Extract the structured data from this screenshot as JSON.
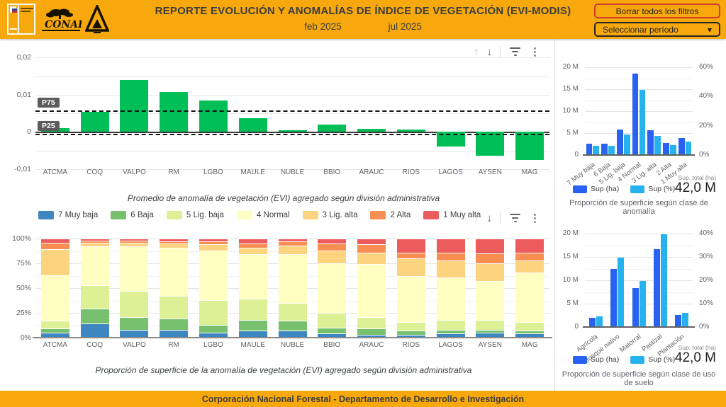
{
  "header": {
    "title": "REPORTE EVOLUCIÓN Y ANOMALÍAS DE ÍNDICE DE VEGETACIÓN (EVI-MODIS)",
    "date_start": "feb 2025",
    "date_end": "jul 2025",
    "clear_filters_label": "Borrar todos los filtros",
    "period_selector_label": "Seleccionar período",
    "conaf_logo_text": "CONAF"
  },
  "icons": {
    "arrow_up": "↑",
    "arrow_down": "↓",
    "kebab": "⋮",
    "caret_down": "▾"
  },
  "colors": {
    "accent_amber": "#F7A80D",
    "positive_green": "#00bf56",
    "sup_ha_blue": "#2962f0",
    "sup_pct_blue": "#25b2ef",
    "clear_button_border": "#cf3a2b"
  },
  "main": {
    "anomaly_caption": "Promedio de anomalía de vegetación (EVI) agregado según división administrativa",
    "stack_caption": "Proporción de superficie de la anomalía de vegetación (EVI) agregado según división administrativa"
  },
  "side": {
    "anomaly_class": {
      "caption": "Proporción de superficie según clase de anomalía",
      "total_label": "Sup. total (ha)",
      "total_value": "42,0 M"
    },
    "landuse": {
      "caption": "Proporción de superficie según clase de uso de suelo",
      "total_label": "Sup. total (ha)",
      "total_value": "42,0 M"
    }
  },
  "footer": {
    "text": "Corporación Nacional Forestal - Departamento de Desarrollo e Investigación"
  },
  "chart_data": [
    {
      "id": "anomaly_avg",
      "type": "bar",
      "title": "Promedio de anomalía de vegetación (EVI) agregado según división administrativa",
      "categories": [
        "ATCMA",
        "COQ",
        "VALPO",
        "RM",
        "LGBO",
        "MAULE",
        "NUBLE",
        "BBIO",
        "ARAUC",
        "RIOS",
        "LAGOS",
        "AYSEN",
        "MAG"
      ],
      "values": [
        0.001,
        0.0053,
        0.014,
        0.0107,
        0.0085,
        0.0037,
        0.0004,
        0.002,
        0.0008,
        0.0006,
        -0.004,
        -0.0064,
        -0.0076
      ],
      "ylim": [
        -0.011,
        0.021
      ],
      "yticks": [
        {
          "v": 0.02,
          "label": "0,02"
        },
        {
          "v": 0.01,
          "label": "0,01"
        },
        {
          "v": 0,
          "label": "0"
        },
        {
          "v": -0.01,
          "label": "-0,01"
        }
      ],
      "gridlines": [
        0.02,
        0.015,
        0.01,
        0.005,
        -0.005,
        -0.01
      ],
      "reference_lines": [
        {
          "label": "P75",
          "value": 0.0055
        },
        {
          "label": "P25",
          "value": -0.0007
        }
      ],
      "bar_color": "#00bf56",
      "grid": true,
      "legend_position": "none"
    },
    {
      "id": "anomaly_stack",
      "type": "bar",
      "subtype": "stacked-100pct",
      "title": "Proporción de superficie de la anomalía de vegetación (EVI) agregado según división administrativa",
      "categories": [
        "ATCMA",
        "COQ",
        "VALPO",
        "RM",
        "LGBO",
        "MAULE",
        "NUBLE",
        "BBIO",
        "ARAUC",
        "RIOS",
        "LAGOS",
        "AYSEN",
        "MAG"
      ],
      "yticks": [
        {
          "v": 0,
          "label": "0%"
        },
        {
          "v": 25,
          "label": "25%"
        },
        {
          "v": 50,
          "label": "50%"
        },
        {
          "v": 75,
          "label": "75%"
        },
        {
          "v": 100,
          "label": "100%"
        }
      ],
      "ylim": [
        0,
        100
      ],
      "legend_position": "top",
      "series": [
        {
          "name": "7 Muy baja",
          "color": "#3d86c0",
          "values": [
            5,
            14,
            8,
            8,
            5,
            7,
            7,
            4,
            3,
            3,
            4,
            5,
            4
          ]
        },
        {
          "name": "6 Baja",
          "color": "#77c06e",
          "values": [
            4,
            15,
            13,
            11,
            8,
            11,
            10,
            6,
            6,
            4,
            4,
            3,
            3
          ]
        },
        {
          "name": "5 Lig. baja",
          "color": "#ddf096",
          "values": [
            8,
            24,
            26,
            23,
            25,
            21,
            18,
            15,
            12,
            9,
            10,
            10,
            9
          ]
        },
        {
          "name": "4 Normal",
          "color": "#ffffc2",
          "values": [
            46,
            39,
            45,
            49,
            50,
            45,
            49,
            50,
            53,
            46,
            43,
            39,
            50
          ]
        },
        {
          "name": "3 Lig. alta",
          "color": "#fcd37e",
          "values": [
            26,
            4,
            4,
            4,
            6,
            7,
            9,
            13,
            12,
            18,
            17,
            18,
            12
          ]
        },
        {
          "name": "2 Alta",
          "color": "#f98e52",
          "values": [
            7,
            2,
            2,
            2.5,
            3,
            4,
            4,
            7,
            8,
            6,
            8,
            10,
            8
          ]
        },
        {
          "name": "1 Muy alta",
          "color": "#ec5c5c",
          "values": [
            4,
            2,
            2,
            2.5,
            3,
            5,
            3,
            5,
            6,
            14,
            14,
            15,
            14
          ]
        }
      ]
    },
    {
      "id": "class_area",
      "type": "bar",
      "subtype": "grouped-dual-axis",
      "title": "Proporción de superficie según clase de anomalía",
      "categories": [
        "7 Muy baja",
        "6 Baja",
        "5 Lig. baja",
        "4 Normal",
        "3 Lig. alta",
        "2 Alta",
        "1 Muy alta"
      ],
      "series": [
        {
          "name": "Sup (ha)",
          "color": "#2962f0",
          "unit": "M ha",
          "values": [
            2.6,
            2.6,
            5.8,
            18.6,
            5.6,
            2.8,
            3.9
          ]
        },
        {
          "name": "Sup (%)",
          "color": "#25b2ef",
          "unit": "%",
          "values": [
            6.2,
            6.2,
            13.8,
            44.3,
            13.3,
            6.7,
            9.3
          ]
        }
      ],
      "left_axis": {
        "max": 20,
        "ticks": [
          {
            "v": 20,
            "label": "20 M"
          },
          {
            "v": 15,
            "label": "15 M"
          },
          {
            "v": 10,
            "label": "10 M"
          },
          {
            "v": 5,
            "label": "5 M"
          },
          {
            "v": 0,
            "label": "0"
          }
        ]
      },
      "right_axis": {
        "max": 60,
        "ticks": [
          {
            "v": 60,
            "label": "60%"
          },
          {
            "v": 40,
            "label": "40%"
          },
          {
            "v": 20,
            "label": "20%"
          },
          {
            "v": 0,
            "label": "0%"
          }
        ]
      },
      "total_label": "Sup. total (ha)",
      "total_value": "42,0 M",
      "legend_position": "bottom"
    },
    {
      "id": "landuse_area",
      "type": "bar",
      "subtype": "grouped-dual-axis",
      "title": "Proporción de superficie según clase de uso de suelo",
      "categories": [
        "Agrícola",
        "Bosque nativo",
        "Matorral",
        "Pastizal",
        "Plantación"
      ],
      "series": [
        {
          "name": "Sup (ha)",
          "color": "#2962f0",
          "unit": "M ha",
          "values": [
            1.9,
            12.5,
            8.3,
            16.7,
            2.6
          ]
        },
        {
          "name": "Sup (%)",
          "color": "#25b2ef",
          "unit": "%",
          "values": [
            4.5,
            29.8,
            19.8,
            39.8,
            6.2
          ]
        }
      ],
      "left_axis": {
        "max": 20,
        "ticks": [
          {
            "v": 20,
            "label": "20 M"
          },
          {
            "v": 15,
            "label": "15 M"
          },
          {
            "v": 10,
            "label": "10 M"
          },
          {
            "v": 5,
            "label": "5 M"
          },
          {
            "v": 0,
            "label": "0"
          }
        ]
      },
      "right_axis": {
        "max": 40,
        "ticks": [
          {
            "v": 40,
            "label": "40%"
          },
          {
            "v": 30,
            "label": "30%"
          },
          {
            "v": 20,
            "label": "20%"
          },
          {
            "v": 10,
            "label": "10%"
          },
          {
            "v": 0,
            "label": "0%"
          }
        ]
      },
      "total_label": "Sup. total (ha)",
      "total_value": "42,0 M",
      "legend_position": "bottom"
    }
  ]
}
